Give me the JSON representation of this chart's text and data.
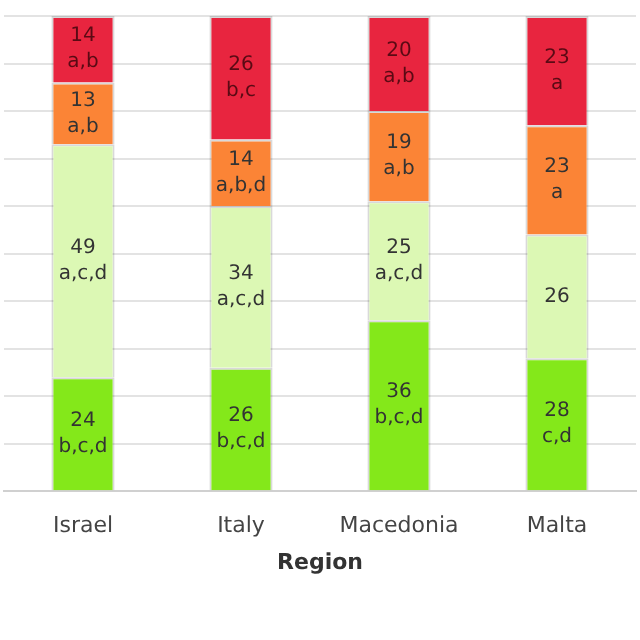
{
  "chart_data": {
    "type": "bar",
    "stacked": true,
    "xlabel": "Region",
    "categories": [
      "Israel",
      "Italy",
      "Macedonia",
      "Malta"
    ],
    "series": [
      {
        "color": "#84e81a",
        "values": [
          24,
          26,
          36,
          28
        ],
        "value_labels": [
          "24\nb,c,d",
          "26\nb,c,d",
          "36\nb,c,d",
          "28\nc,d"
        ]
      },
      {
        "color": "#dcf8b4",
        "values": [
          49,
          34,
          25,
          26
        ],
        "value_labels": [
          "49\na,c,d",
          "34\na,c,d",
          "25\na,c,d",
          "26"
        ]
      },
      {
        "color": "#fb8436",
        "values": [
          13,
          14,
          19,
          23
        ],
        "value_labels": [
          "13\na,b",
          "14\na,b,d",
          "19\na,b",
          "23\na"
        ]
      },
      {
        "color": "#e8253f",
        "values": [
          14,
          26,
          20,
          23
        ],
        "value_labels": [
          "14\na,b",
          "26\nb,c",
          "20\na,b",
          "23\na"
        ]
      }
    ],
    "ylim": [
      0,
      100
    ],
    "grid": "y",
    "tick_labels": "x",
    "legend": false
  }
}
